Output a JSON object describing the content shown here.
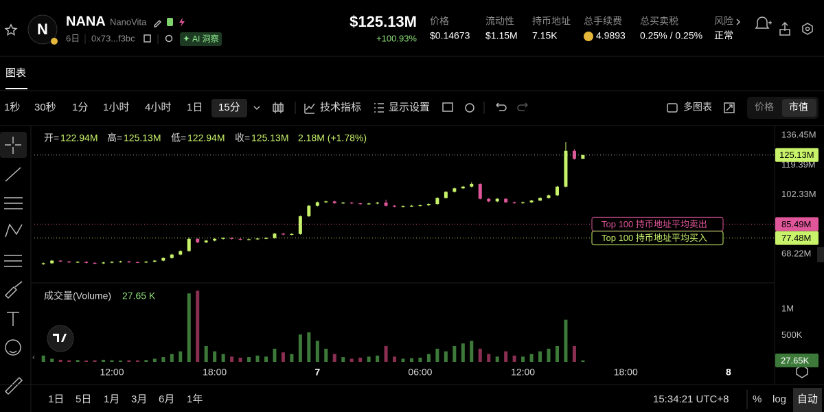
{
  "header": {
    "symbol": "NANA",
    "name": "NanoVita",
    "age": "6日",
    "address": "0x73...f3bc",
    "ai_badge": "AI 洞察",
    "market_cap": "$125.13M",
    "change": "+100.93%",
    "stats": [
      {
        "label": "价格",
        "value": "$0.14673"
      },
      {
        "label": "流动性",
        "value": "$1.15M"
      },
      {
        "label": "持币地址",
        "value": "7.15K"
      },
      {
        "label": "总手续费",
        "value": "4.9893"
      },
      {
        "label": "总买卖税",
        "value": "0.25% / 0.25%"
      },
      {
        "label": "风险",
        "value": "正常"
      }
    ]
  },
  "tab": "图表",
  "toolbar": {
    "intervals": [
      "1秒",
      "30秒",
      "1分",
      "1小时",
      "4小时",
      "1日",
      "15分"
    ],
    "indicators": "技术指标",
    "display": "显示设置",
    "multi_chart": "多图表",
    "modes": [
      "价格",
      "市值"
    ]
  },
  "legend": {
    "open_label": "开=",
    "open": "122.94M",
    "high_label": "高=",
    "high": "125.13M",
    "low_label": "低=",
    "low": "122.94M",
    "close_label": "收=",
    "close": "125.13M",
    "change": "2.18M (+1.78%)",
    "volume_title": "成交量(Volume)",
    "volume_value": "27.65 K"
  },
  "chart_data": {
    "type": "candlestick",
    "x": [
      8,
      8.5,
      9,
      9.5,
      10,
      10.5,
      11,
      11.5,
      12,
      12.5,
      13,
      13.5,
      14,
      14.5,
      15,
      15.5,
      16,
      16.5,
      17,
      17.5,
      18,
      18.5,
      19,
      19.5,
      20,
      20.5,
      21,
      21.5,
      22,
      22.5,
      23,
      23.5,
      24,
      24.5,
      25,
      25.5,
      26,
      26.5,
      27,
      27.5,
      28,
      28.5,
      29,
      29.5,
      30,
      30.5,
      31,
      31.5,
      32,
      32.5,
      33,
      33.5,
      34,
      34.5,
      35,
      35.5,
      36,
      36.5,
      37,
      37.5,
      38,
      38.5,
      39,
      39.5
    ],
    "open": [
      62.5,
      63.0,
      64.5,
      64.0,
      63.5,
      63.8,
      63.2,
      63.0,
      63.4,
      63.8,
      64.0,
      63.6,
      63.5,
      63.9,
      64.5,
      66.0,
      68.0,
      70.0,
      77.0,
      75.0,
      76.0,
      77.0,
      77.5,
      77.0,
      76.5,
      76.8,
      77.2,
      77.5,
      80.0,
      79.5,
      79.8,
      90.0,
      96.0,
      98.0,
      98.5,
      97.5,
      97.8,
      97.4,
      97.0,
      97.3,
      97.8,
      96.0,
      95.5,
      95.8,
      96.0,
      96.3,
      97.0,
      100.5,
      104.0,
      106.0,
      107.0,
      108.5,
      100.0,
      98.5,
      100.0,
      98.0,
      97.5,
      98.0,
      99.0,
      100.5,
      102.0,
      107.0,
      127.5,
      122.94
    ],
    "high": [
      63.4,
      64.9,
      64.9,
      64.4,
      64.2,
      64.2,
      63.6,
      63.8,
      64.2,
      64.4,
      64.4,
      64.0,
      64.3,
      64.9,
      66.4,
      68.4,
      70.4,
      77.8,
      77.4,
      76.4,
      77.4,
      77.9,
      77.9,
      77.4,
      77.2,
      77.6,
      77.9,
      80.4,
      80.4,
      80.2,
      90.4,
      96.4,
      98.4,
      98.9,
      98.9,
      98.2,
      98.2,
      97.8,
      97.7,
      98.2,
      99.5,
      96.4,
      96.2,
      96.4,
      96.7,
      97.4,
      100.9,
      104.4,
      106.4,
      107.4,
      109.5,
      108.9,
      100.4,
      100.4,
      100.4,
      98.4,
      98.4,
      99.4,
      100.9,
      102.4,
      107.4,
      132.5,
      128.5,
      125.13
    ],
    "low": [
      62.1,
      62.6,
      63.6,
      63.1,
      63.1,
      62.8,
      62.6,
      62.6,
      63.0,
      63.4,
      63.2,
      63.1,
      63.1,
      63.5,
      64.1,
      65.6,
      67.6,
      69.6,
      74.6,
      74.6,
      75.6,
      76.6,
      76.6,
      76.1,
      76.1,
      76.4,
      76.8,
      77.1,
      79.1,
      79.1,
      79.4,
      89.6,
      95.6,
      97.6,
      97.1,
      97.1,
      97.0,
      96.6,
      96.6,
      96.9,
      95.6,
      95.1,
      95.1,
      95.4,
      95.6,
      95.9,
      96.6,
      100.1,
      103.6,
      105.6,
      106.6,
      99.6,
      98.1,
      98.1,
      97.6,
      97.1,
      97.1,
      97.6,
      98.6,
      100.1,
      101.6,
      106.6,
      122.5,
      122.94
    ],
    "close": [
      63.0,
      64.5,
      64.0,
      63.5,
      63.8,
      63.2,
      63.0,
      63.4,
      63.8,
      64.0,
      63.6,
      63.5,
      63.9,
      64.5,
      66.0,
      68.0,
      70.0,
      77.0,
      75.0,
      76.0,
      77.0,
      77.5,
      77.0,
      76.5,
      76.8,
      77.2,
      77.5,
      80.0,
      79.5,
      79.8,
      90.0,
      96.0,
      98.0,
      98.5,
      97.5,
      97.8,
      97.4,
      97.0,
      97.3,
      97.8,
      96.0,
      95.5,
      95.8,
      96.0,
      96.3,
      97.0,
      100.5,
      104.0,
      106.0,
      107.0,
      108.5,
      100.0,
      98.5,
      100.0,
      98.0,
      97.5,
      98.0,
      99.0,
      100.5,
      102.0,
      107.0,
      127.5,
      122.94,
      125.13
    ],
    "volume": [
      120000,
      60000,
      40000,
      30000,
      35000,
      25000,
      30000,
      40000,
      30000,
      25000,
      30000,
      28000,
      35000,
      60000,
      90000,
      150000,
      200000,
      1300000,
      1350000,
      300000,
      200000,
      150000,
      100000,
      80000,
      90000,
      120000,
      100000,
      250000,
      180000,
      150000,
      520000,
      560000,
      400000,
      250000,
      150000,
      90000,
      60000,
      80000,
      100000,
      120000,
      300000,
      100000,
      60000,
      70000,
      80000,
      150000,
      250000,
      200000,
      300000,
      350000,
      400000,
      250000,
      150000,
      100000,
      200000,
      120000,
      100000,
      150000,
      200000,
      250000,
      300000,
      800000,
      300000,
      27650
    ],
    "up_color": "#c8f26a",
    "down_color": "#e0569a",
    "vol_up_color": "#3d7a3a",
    "vol_down_color": "#8a2f52",
    "xlim": [
      7.67,
      50.57
    ],
    "xticks": [
      {
        "value": 12,
        "label": "12:00"
      },
      {
        "value": 18,
        "label": "18:00"
      },
      {
        "value": 24,
        "label": "7"
      },
      {
        "value": 30,
        "label": "06:00"
      },
      {
        "value": 36,
        "label": "12:00"
      },
      {
        "value": 42,
        "label": "18:00"
      },
      {
        "value": 48,
        "label": "8"
      }
    ],
    "ylim": [
      52.5,
      141.2
    ],
    "yticks": [
      {
        "value": 68.22,
        "label": "68.22M"
      },
      {
        "value": 102.33,
        "label": "102.33M"
      },
      {
        "value": 119.39,
        "label": "119.39M"
      },
      {
        "value": 136.45,
        "label": "136.45M"
      }
    ],
    "vlim": [
      0,
      1460000
    ],
    "vticks": [
      {
        "value": 500000,
        "label": "500K"
      },
      {
        "value": 1000000,
        "label": "1M"
      }
    ],
    "last_price": {
      "value": 125.13,
      "label": "125.13M",
      "color": "#c8f26a"
    },
    "last_volume_label": "27.65K",
    "price_lines": [
      {
        "name": "Top 100 持币地址平均卖出",
        "value": 85.49,
        "label": "85.49M",
        "color": "#e0569a"
      },
      {
        "name": "Top 100 持币地址平均买入",
        "value": 77.48,
        "label": "77.48M",
        "color": "#c8f26a"
      }
    ]
  },
  "footer": {
    "ranges": [
      "1日",
      "5日",
      "1月",
      "3月",
      "6月",
      "1年"
    ],
    "clock": "15:34:21 UTC+8",
    "percent": "%",
    "log": "log",
    "auto": "自动"
  }
}
